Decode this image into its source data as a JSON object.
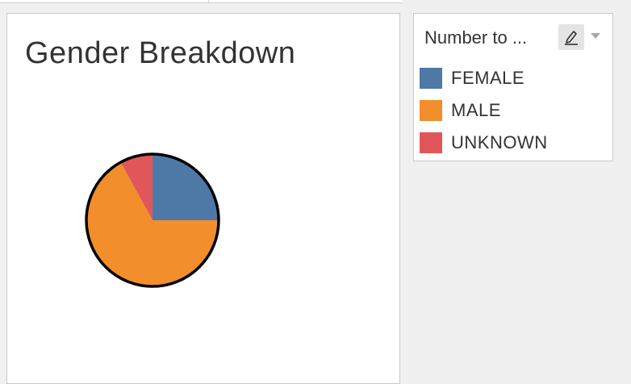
{
  "worksheet": {
    "title": "Gender Breakdown"
  },
  "legend": {
    "title": "Number to ...",
    "edit_icon": "pencil-icon",
    "dropdown_icon": "caret-down-icon",
    "items": [
      {
        "label": "FEMALE",
        "color": "#4e79a7"
      },
      {
        "label": "MALE",
        "color": "#f28e2b"
      },
      {
        "label": "UNKNOWN",
        "color": "#e15759"
      }
    ]
  },
  "chart_data": {
    "type": "pie",
    "title": "Gender Breakdown",
    "slices": [
      {
        "label": "FEMALE",
        "value": 25,
        "color": "#4e79a7"
      },
      {
        "label": "MALE",
        "value": 67,
        "color": "#f28e2b"
      },
      {
        "label": "UNKNOWN",
        "value": 8,
        "color": "#e15759"
      }
    ],
    "legend": "right"
  }
}
